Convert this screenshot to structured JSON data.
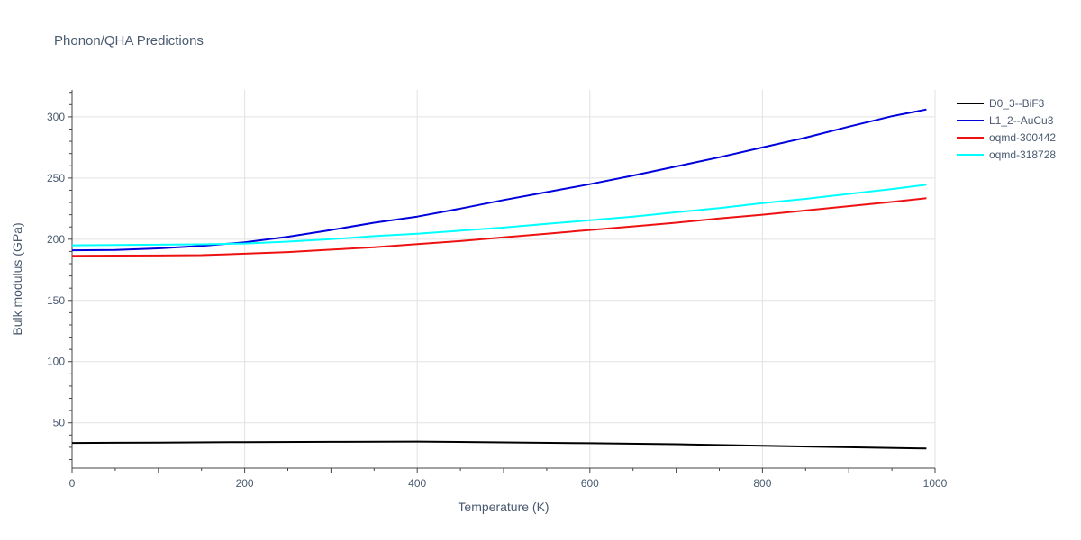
{
  "chart_data": {
    "type": "line",
    "title": "Phonon/QHA Predictions",
    "xlabel": "Temperature (K)",
    "ylabel": "Bulk modulus (GPa)",
    "xlim": [
      0,
      1000
    ],
    "ylim": [
      13,
      322
    ],
    "x_ticks": [
      0,
      200,
      400,
      600,
      800,
      1000
    ],
    "y_ticks": [
      50,
      100,
      150,
      200,
      250,
      300
    ],
    "grid": true,
    "legend_position": "top-right",
    "series": [
      {
        "name": "D0_3--BiF3",
        "color": "#000000",
        "x": [
          0,
          100,
          200,
          300,
          400,
          500,
          600,
          700,
          800,
          900,
          990
        ],
        "y": [
          33.5,
          33.8,
          34.2,
          34.4,
          34.6,
          34.0,
          33.3,
          32.5,
          31.2,
          30.0,
          29.0
        ]
      },
      {
        "name": "L1_2--AuCu3",
        "color": "#0000dd",
        "x": [
          0,
          50,
          100,
          150,
          200,
          250,
          300,
          350,
          400,
          450,
          500,
          550,
          600,
          650,
          700,
          750,
          800,
          850,
          900,
          950,
          990
        ],
        "y": [
          191,
          191.2,
          192.5,
          194.5,
          197.5,
          202,
          207.5,
          213.5,
          218.5,
          225,
          232,
          238.5,
          245,
          252,
          259.5,
          267,
          275,
          283,
          292,
          300.5,
          306
        ]
      },
      {
        "name": "oqmd-300442",
        "color": "#ee1111",
        "x": [
          0,
          50,
          100,
          150,
          200,
          250,
          300,
          350,
          400,
          450,
          500,
          550,
          600,
          650,
          700,
          750,
          800,
          850,
          900,
          950,
          990
        ],
        "y": [
          186.5,
          186.6,
          186.7,
          187,
          188.2,
          189.5,
          191.5,
          193.5,
          196,
          198.5,
          201.5,
          204.5,
          207.5,
          210.5,
          213.5,
          217,
          220,
          223.5,
          227,
          230.5,
          233.5
        ]
      },
      {
        "name": "oqmd-318728",
        "color": "#00ffff",
        "x": [
          0,
          50,
          100,
          150,
          200,
          250,
          300,
          350,
          400,
          450,
          500,
          550,
          600,
          650,
          700,
          750,
          800,
          850,
          900,
          950,
          990
        ],
        "y": [
          195,
          195.2,
          195.5,
          195.8,
          196.5,
          198,
          200,
          202.5,
          204.5,
          207,
          209.5,
          212.5,
          215.5,
          218.5,
          222,
          225.5,
          229.5,
          233,
          237,
          241,
          244.5
        ]
      }
    ]
  }
}
